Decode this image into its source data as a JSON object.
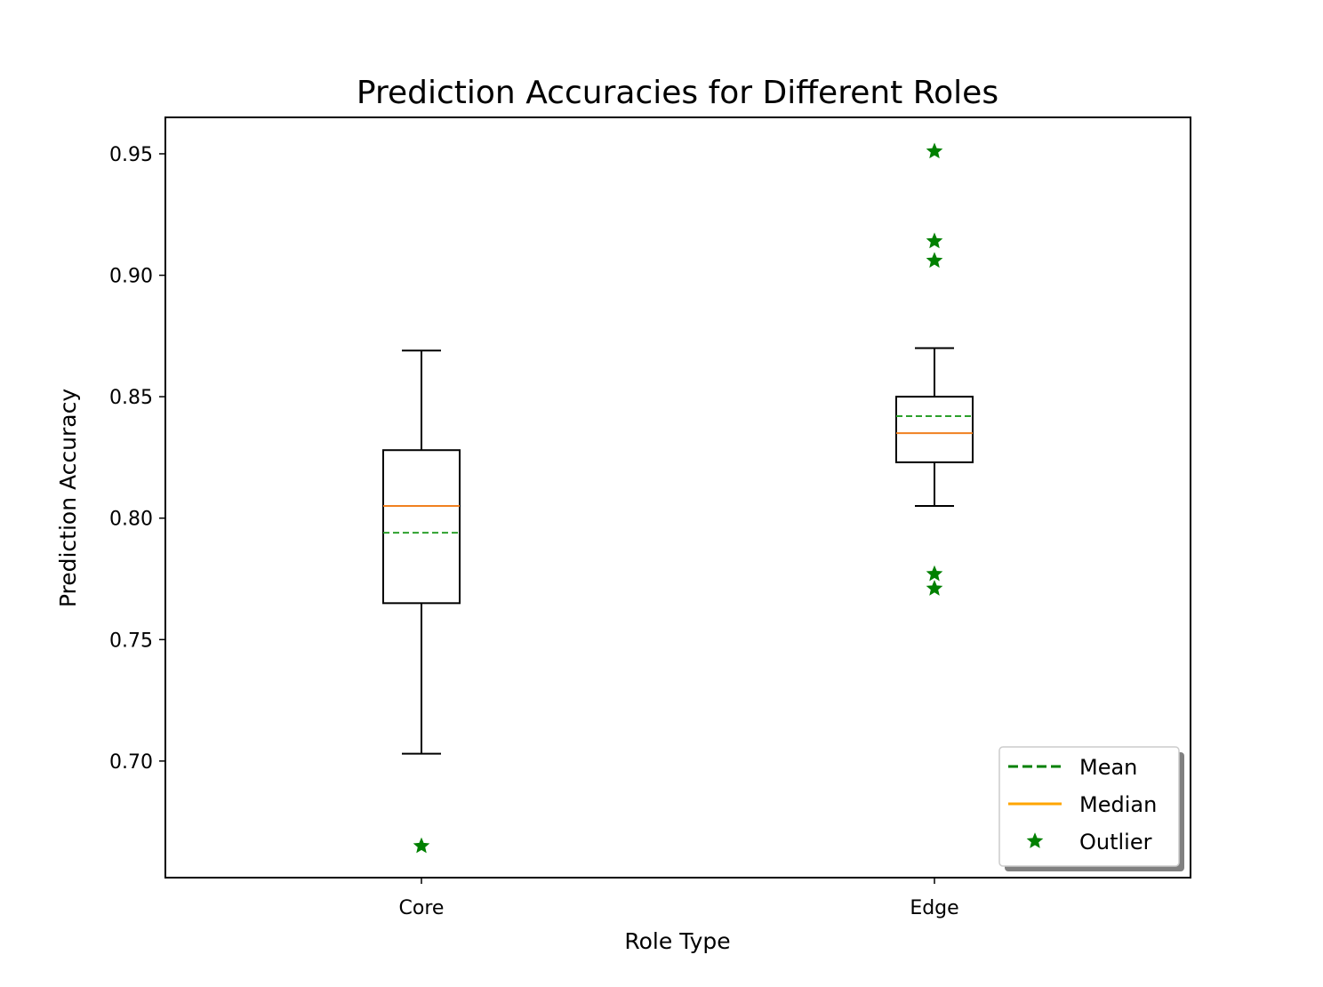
{
  "chart_data": {
    "type": "box",
    "title": "Prediction Accuracies for Different Roles",
    "xlabel": "Role Type",
    "ylabel": "Prediction Accuracy",
    "ylim": [
      0.652,
      0.965
    ],
    "yticks": [
      0.7,
      0.75,
      0.8,
      0.85,
      0.9,
      0.95
    ],
    "ytick_labels": [
      "0.70",
      "0.75",
      "0.80",
      "0.85",
      "0.90",
      "0.95"
    ],
    "grid": false,
    "categories": [
      "Core",
      "Edge"
    ],
    "boxes": [
      {
        "category": "Core",
        "whisker_low": 0.703,
        "q1": 0.765,
        "median": 0.805,
        "mean": 0.794,
        "q3": 0.828,
        "whisker_high": 0.869,
        "outliers": [
          0.665
        ]
      },
      {
        "category": "Edge",
        "whisker_low": 0.805,
        "q1": 0.823,
        "median": 0.835,
        "mean": 0.842,
        "q3": 0.85,
        "whisker_high": 0.87,
        "outliers": [
          0.951,
          0.914,
          0.906,
          0.777,
          0.771
        ]
      }
    ],
    "colors": {
      "box": "#000000",
      "median": "#f08020",
      "mean": "#2ca02c",
      "outlier": "#008000",
      "legend_mean": "#008000",
      "legend_median": "#ffa500"
    },
    "legend": {
      "position": "lower-right",
      "entries": [
        {
          "label": "Mean",
          "style": "dashed-line"
        },
        {
          "label": "Median",
          "style": "solid-line"
        },
        {
          "label": "Outlier",
          "style": "star-marker"
        }
      ]
    }
  }
}
